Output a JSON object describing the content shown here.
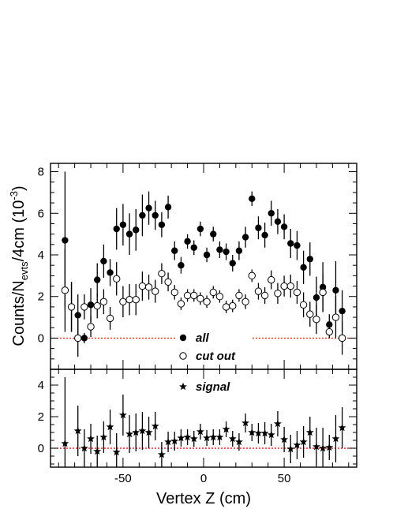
{
  "chart_data": [
    {
      "type": "scatter",
      "panel": "top",
      "ylabel_main": "Counts/N",
      "ylabel_sub": "evts",
      "ylabel_rest": "/4cm (10",
      "ylabel_sup": "-3",
      "ylabel_close": ")",
      "ylim": [
        -1.5,
        8.4
      ],
      "xlim": [
        -95,
        95
      ],
      "yticks": [
        0,
        2,
        4,
        6,
        8
      ],
      "ytick_labels": [
        "0",
        "2",
        "4",
        "6",
        "8"
      ],
      "zero_line": "red-dotted",
      "legend_location": "bottom-center",
      "series": [
        {
          "name": "all",
          "marker": "filled-circle",
          "x": [
            -86,
            -82,
            -78,
            -74,
            -70,
            -66,
            -62,
            -58,
            -54,
            -50,
            -46,
            -42,
            -38,
            -34,
            -30,
            -26,
            -22,
            -18,
            -14,
            -10,
            -6,
            -2,
            2,
            6,
            10,
            14,
            18,
            22,
            26,
            30,
            34,
            38,
            42,
            46,
            50,
            54,
            58,
            62,
            66,
            70,
            74,
            78,
            82,
            86
          ],
          "y": [
            4.7,
            1.5,
            1.1,
            0.0,
            1.6,
            2.8,
            3.7,
            3.15,
            5.25,
            5.45,
            5.0,
            5.2,
            5.9,
            6.25,
            5.9,
            5.45,
            6.3,
            4.2,
            3.5,
            4.65,
            4.35,
            5.25,
            4.0,
            5.0,
            4.25,
            4.15,
            3.6,
            4.2,
            4.85,
            6.7,
            5.3,
            4.95,
            6.0,
            5.6,
            5.35,
            4.55,
            4.45,
            3.4,
            3.8,
            1.95,
            2.45,
            0.65,
            2.3,
            1.3
          ],
          "err": [
            3.3,
            1.2,
            1.0,
            0.25,
            0.8,
            0.8,
            0.8,
            0.65,
            1.0,
            1.0,
            1.0,
            1.0,
            1.0,
            0.8,
            0.7,
            0.6,
            0.55,
            0.45,
            0.4,
            0.35,
            0.35,
            0.35,
            0.35,
            0.35,
            0.4,
            0.4,
            0.4,
            0.45,
            0.5,
            0.35,
            0.55,
            0.6,
            0.6,
            0.6,
            0.6,
            0.7,
            0.7,
            0.8,
            0.8,
            1.0,
            1.2,
            0.5,
            1.4,
            1.0
          ]
        },
        {
          "name": "cut out",
          "marker": "open-circle",
          "x": [
            -86,
            -82,
            -78,
            -74,
            -70,
            -66,
            -62,
            -58,
            -54,
            -50,
            -46,
            -42,
            -38,
            -34,
            -30,
            -26,
            -22,
            -18,
            -14,
            -10,
            -6,
            -2,
            2,
            6,
            10,
            14,
            18,
            22,
            26,
            30,
            34,
            38,
            42,
            46,
            50,
            54,
            58,
            62,
            66,
            70,
            74,
            78,
            82,
            86
          ],
          "y": [
            2.3,
            1.5,
            0.0,
            1.5,
            0.55,
            1.55,
            1.75,
            0.95,
            2.85,
            1.75,
            1.85,
            1.85,
            2.5,
            2.45,
            2.25,
            3.1,
            2.7,
            2.2,
            1.65,
            2.05,
            2.05,
            1.9,
            1.75,
            2.2,
            2.0,
            1.5,
            1.55,
            2.05,
            1.75,
            3.0,
            2.25,
            2.05,
            2.8,
            2.15,
            2.5,
            2.5,
            2.2,
            1.6,
            1.15,
            0.9,
            2.2,
            0.3,
            1.0,
            0.0
          ],
          "err": [
            2.0,
            1.2,
            0.9,
            0.6,
            0.5,
            0.6,
            0.6,
            0.55,
            0.8,
            0.75,
            0.75,
            0.75,
            0.7,
            0.6,
            0.55,
            0.5,
            0.45,
            0.35,
            0.3,
            0.3,
            0.3,
            0.3,
            0.3,
            0.3,
            0.3,
            0.3,
            0.3,
            0.3,
            0.35,
            0.3,
            0.4,
            0.4,
            0.45,
            0.5,
            0.5,
            0.55,
            0.55,
            0.6,
            0.6,
            0.7,
            0.9,
            0.3,
            1.0,
            0.8
          ]
        }
      ]
    },
    {
      "type": "scatter",
      "panel": "bottom",
      "xlabel": "Vertex Z (cm)",
      "ylim": [
        -1.2,
        5.0
      ],
      "xlim": [
        -95,
        95
      ],
      "xticks": [
        -50,
        0,
        50
      ],
      "xtick_labels": [
        "-50",
        "0",
        "50"
      ],
      "yticks": [
        0,
        2,
        4
      ],
      "ytick_labels": [
        "0",
        "2",
        "4"
      ],
      "zero_line": "red-dotted",
      "legend_location": "top-center",
      "series": [
        {
          "name": "signal",
          "marker": "star",
          "x": [
            -86,
            -78,
            -74,
            -70,
            -66,
            -62,
            -58,
            -54,
            -50,
            -46,
            -42,
            -38,
            -34,
            -30,
            -26,
            -22,
            -18,
            -14,
            -10,
            -6,
            -2,
            2,
            6,
            10,
            14,
            18,
            22,
            26,
            30,
            34,
            38,
            42,
            46,
            50,
            54,
            58,
            62,
            66,
            70,
            74,
            78,
            82,
            86
          ],
          "y": [
            0.3,
            1.1,
            0.0,
            0.6,
            -0.2,
            0.7,
            1.35,
            -0.25,
            2.1,
            0.9,
            1.0,
            1.1,
            1.0,
            1.4,
            -0.4,
            0.4,
            0.45,
            0.65,
            0.7,
            0.6,
            1.05,
            0.65,
            0.7,
            0.7,
            1.2,
            0.6,
            0.4,
            1.6,
            1.0,
            0.95,
            0.95,
            0.85,
            1.55,
            0.55,
            -0.05,
            0.2,
            0.4,
            1.0,
            0.1,
            0.0,
            0.05,
            0.6,
            1.3
          ],
          "err": [
            4.2,
            1.6,
            1.2,
            0.95,
            1.0,
            1.0,
            1.1,
            1.2,
            1.3,
            1.2,
            1.2,
            1.2,
            1.0,
            0.9,
            0.8,
            0.65,
            0.6,
            0.55,
            0.5,
            0.5,
            0.5,
            0.5,
            0.5,
            0.5,
            0.5,
            0.5,
            0.55,
            0.6,
            0.55,
            0.65,
            0.7,
            0.7,
            0.8,
            0.8,
            0.9,
            0.9,
            1.0,
            1.0,
            1.2,
            1.3,
            0.8,
            1.5,
            1.3
          ]
        }
      ]
    }
  ]
}
